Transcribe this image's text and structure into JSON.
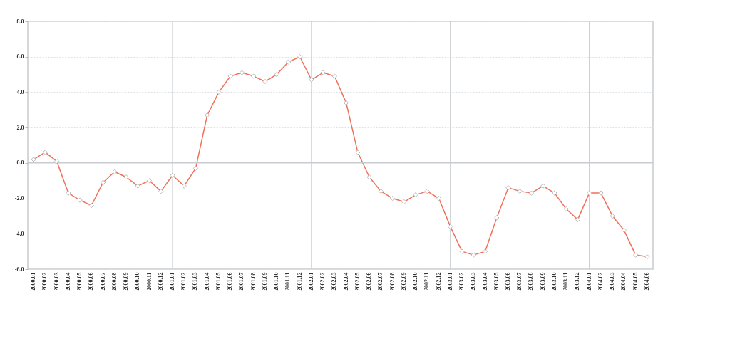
{
  "chart_data": {
    "type": "line",
    "categories": [
      "2000.01",
      "2000.02",
      "2000.03",
      "2000.04",
      "2000.05",
      "2000.06",
      "2000.07",
      "2000.08",
      "2000.09",
      "2000.10",
      "2000.11",
      "2000.12",
      "2001.01",
      "2001.02",
      "2001.03",
      "2001.04",
      "2001.05",
      "2001.06",
      "2001.07",
      "2001.08",
      "2001.09",
      "2001.10",
      "2001.11",
      "2001.12",
      "2002.01",
      "2002.02",
      "2002.03",
      "2002.04",
      "2002.05",
      "2002.06",
      "2002.07",
      "2002.08",
      "2002.09",
      "2002.10",
      "2002.11",
      "2002.12",
      "2003.01",
      "2003.02",
      "2003.03",
      "2003.04",
      "2003.05",
      "2003.06",
      "2003.07",
      "2003.08",
      "2003.09",
      "2003.10",
      "2003.11",
      "2003.12",
      "2004.01",
      "2004.02",
      "2004.03",
      "2004.04",
      "2004.05",
      "2004.06"
    ],
    "series": [
      {
        "color": "#f0705a",
        "values": [
          0.2,
          0.6,
          0.1,
          -1.7,
          -2.1,
          -2.4,
          -1.1,
          -0.5,
          -0.8,
          -1.3,
          -1.0,
          -1.6,
          -0.7,
          -1.3,
          -0.3,
          2.7,
          4.0,
          4.9,
          5.1,
          4.9,
          4.6,
          5.0,
          5.7,
          6.0,
          4.7,
          5.1,
          4.9,
          3.4,
          0.6,
          -0.8,
          -1.6,
          -2.0,
          -2.2,
          -1.8,
          -1.6,
          -2.0,
          -3.6,
          -5.0,
          -5.2,
          -5.0,
          -3.1,
          -1.4,
          -1.6,
          -1.7,
          -1.3,
          -1.7,
          -2.6,
          -3.2,
          -1.7,
          -1.7,
          -3.0,
          -3.8,
          -5.2,
          -5.3
        ]
      }
    ],
    "ylim": [
      -6,
      8
    ],
    "yticks": [
      {
        "value": -6,
        "label": "-6.0"
      },
      {
        "value": -4,
        "label": "-4.0"
      },
      {
        "value": -2,
        "label": "-2.0"
      },
      {
        "value": 0,
        "label": "0.0"
      },
      {
        "value": 2,
        "label": "2.0"
      },
      {
        "value": 4,
        "label": "4.0"
      },
      {
        "value": 6,
        "label": "6.0"
      },
      {
        "value": 8,
        "label": "8.0"
      }
    ],
    "grid": "y",
    "marker": "diamond",
    "line_style": "solid",
    "ref_lines": [
      {
        "axis": "y",
        "value": 0,
        "color": "#c8ccd0"
      },
      {
        "axis": "x",
        "value": "2001.01",
        "color": "#c8ccd0"
      },
      {
        "axis": "x",
        "value": "2002.01",
        "color": "#c8ccd0"
      },
      {
        "axis": "x",
        "value": "2003.01",
        "color": "#c8ccd0"
      },
      {
        "axis": "x",
        "value": "2004.01",
        "color": "#c8ccd0"
      }
    ]
  }
}
